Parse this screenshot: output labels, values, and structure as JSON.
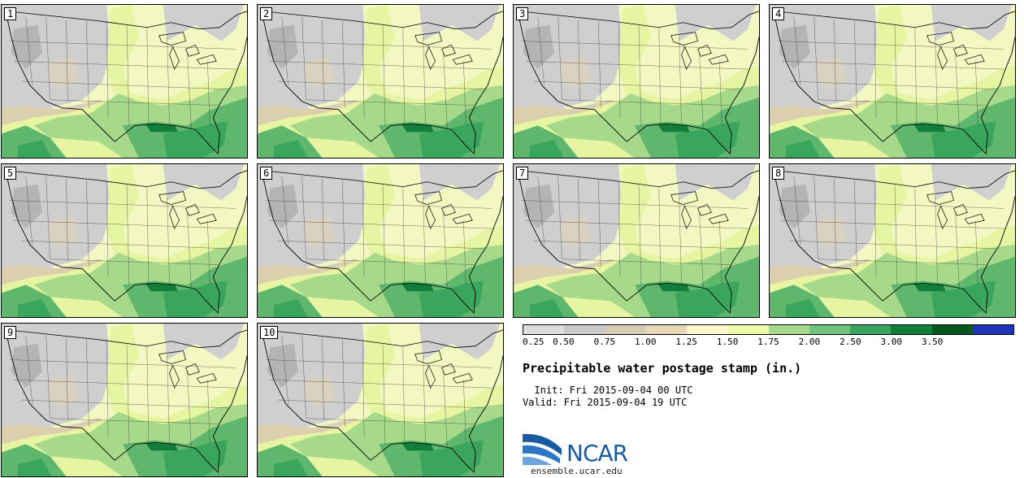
{
  "stamps": [
    {
      "label": "1"
    },
    {
      "label": "2"
    },
    {
      "label": "3"
    },
    {
      "label": "4"
    },
    {
      "label": "5"
    },
    {
      "label": "6"
    },
    {
      "label": "7"
    },
    {
      "label": "8"
    },
    {
      "label": "9"
    },
    {
      "label": "10"
    }
  ],
  "legend": {
    "colors": [
      "#dcdcdc",
      "#c8c8c8",
      "#d6ccb4",
      "#e6d7b6",
      "#fbf7c8",
      "#edfaa7",
      "#a7d98a",
      "#6fc37a",
      "#3aa55c",
      "#117f3a",
      "#05561f",
      "#1f35b8"
    ],
    "tick_labels": [
      "0.25",
      "0.50",
      "0.75",
      "1.00",
      "1.25",
      "1.50",
      "1.75",
      "2.00",
      "2.50",
      "3.00",
      "3.50"
    ]
  },
  "title": "Precipitable water postage stamp (in.)",
  "init": "  Init: Fri 2015-09-04 00 UTC",
  "valid": "Valid: Fri 2015-09-04 19 UTC",
  "logo": {
    "name": "NCAR",
    "url": "ensemble.ucar.edu",
    "color": "#1a5aa0"
  }
}
